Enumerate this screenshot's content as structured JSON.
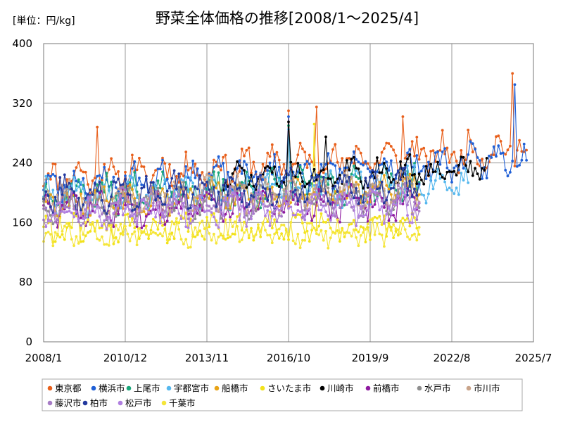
{
  "chart_data": {
    "type": "line",
    "title": "野菜全体価格の推移[2008/1～2025/4]",
    "unit_label": "[単位：円/kg]",
    "xlabel": "",
    "ylabel": "",
    "ylim": [
      0,
      400
    ],
    "yticks": [
      0,
      80,
      160,
      240,
      320,
      400
    ],
    "xlim": [
      "2008/1",
      "2025/7"
    ],
    "xtick_labels": [
      "2008/1",
      "2010/12",
      "2013/11",
      "2016/10",
      "2019/9",
      "2022/8",
      "2025/7"
    ],
    "grid": true,
    "legend_position": "bottom",
    "series": [
      {
        "name": "東京都",
        "color": "#E8601C",
        "start": "2008/1",
        "end": "2025/4",
        "base": 218,
        "trend": 0.2,
        "amp": 26,
        "phase": 0.0,
        "seed": 11,
        "peaks": [
          [
            "2009/12",
            288
          ],
          [
            "2016/10",
            310
          ],
          [
            "2017/10",
            315
          ],
          [
            "2020/11",
            302
          ],
          [
            "2024/10",
            360
          ]
        ]
      },
      {
        "name": "横浜市",
        "color": "#1F5FD6",
        "start": "2008/1",
        "end": "2025/4",
        "base": 208,
        "trend": 0.18,
        "amp": 24,
        "phase": 0.3,
        "seed": 23,
        "peaks": [
          [
            "2016/10",
            302
          ],
          [
            "2024/11",
            345
          ]
        ]
      },
      {
        "name": "上尾市",
        "color": "#1AA67A",
        "start": "2008/1",
        "end": "2021/6",
        "base": 196,
        "trend": 0.1,
        "amp": 24,
        "phase": 0.5,
        "seed": 37,
        "peaks": [
          [
            "2016/10",
            290
          ]
        ]
      },
      {
        "name": "宇都宮市",
        "color": "#56B8EE",
        "start": "2008/1",
        "end": "2023/3",
        "base": 193,
        "trend": 0.12,
        "amp": 24,
        "phase": 0.8,
        "seed": 41,
        "peaks": [
          [
            "2016/10",
            285
          ]
        ]
      },
      {
        "name": "船橋市",
        "color": "#E8A317",
        "start": "2008/1",
        "end": "2021/6",
        "base": 188,
        "trend": 0.1,
        "amp": 22,
        "phase": 1.1,
        "seed": 53,
        "peaks": []
      },
      {
        "name": "さいたま市",
        "color": "#F2E21B",
        "start": "2008/1",
        "end": "2021/6",
        "base": 150,
        "trend": 0.02,
        "amp": 20,
        "phase": 1.4,
        "seed": 61,
        "peaks": [
          [
            "2017/9",
            292
          ]
        ]
      },
      {
        "name": "川崎市",
        "color": "#000000",
        "start": "2014/6",
        "end": "2023/11",
        "base": 210,
        "trend": 0.12,
        "amp": 20,
        "phase": 1.6,
        "seed": 71,
        "peaks": [
          [
            "2016/10",
            295
          ],
          [
            "2018/2",
            275
          ]
        ]
      },
      {
        "name": "前橋市",
        "color": "#8E1AA0",
        "start": "2008/1",
        "end": "2021/6",
        "base": 178,
        "trend": 0.05,
        "amp": 24,
        "phase": 1.9,
        "seed": 83,
        "peaks": []
      },
      {
        "name": "水戸市",
        "color": "#8F8F8F",
        "start": "2008/1",
        "end": "2021/6",
        "base": 185,
        "trend": 0.08,
        "amp": 24,
        "phase": 2.2,
        "seed": 97,
        "peaks": []
      },
      {
        "name": "市川市",
        "color": "#C9A48A",
        "start": "2008/1",
        "end": "2021/6",
        "base": 192,
        "trend": 0.08,
        "amp": 24,
        "phase": 2.5,
        "seed": 101,
        "peaks": []
      },
      {
        "name": "藤沢市",
        "color": "#A77CC6",
        "start": "2008/1",
        "end": "2021/6",
        "base": 181,
        "trend": 0.06,
        "amp": 22,
        "phase": 2.8,
        "seed": 113,
        "peaks": []
      },
      {
        "name": "柏市",
        "color": "#23399E",
        "start": "2008/1",
        "end": "2021/6",
        "base": 198,
        "trend": 0.08,
        "amp": 24,
        "phase": 3.1,
        "seed": 127,
        "peaks": []
      },
      {
        "name": "松戸市",
        "color": "#B07FE0",
        "start": "2008/1",
        "end": "2021/6",
        "base": 173,
        "trend": 0.06,
        "amp": 22,
        "phase": 3.4,
        "seed": 131,
        "peaks": []
      },
      {
        "name": "千葉市",
        "color": "#F5E53A",
        "start": "2008/1",
        "end": "2021/6",
        "base": 145,
        "trend": 0.02,
        "amp": 18,
        "phase": 3.7,
        "seed": 139,
        "peaks": []
      }
    ]
  }
}
